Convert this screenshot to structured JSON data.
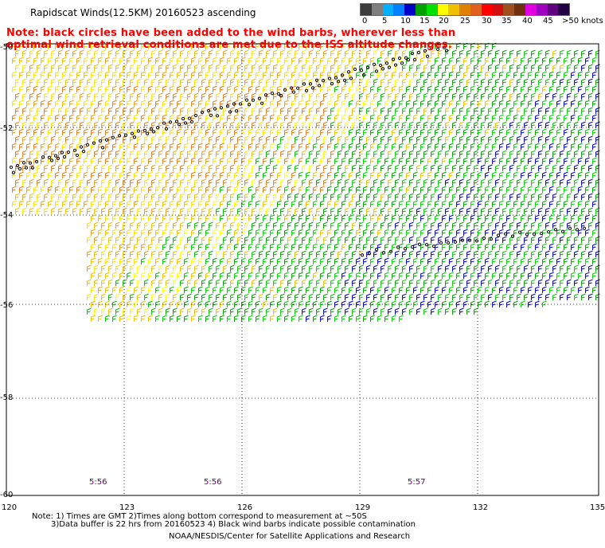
{
  "title": "Rapidscat Winds(12.5KM) 20160523 ascending",
  "note": {
    "line1": "Note: black circles have been added to the wind barbs, wherever less than",
    "line2": "optimal wind retrieval conditions are met due to the ISS altitude changes."
  },
  "legend": {
    "ticks": [
      "0",
      "5",
      "10",
      "15",
      "20",
      "25",
      "30",
      "35",
      "40",
      "45",
      ">50 knots"
    ],
    "colors": [
      "#3c3c3c",
      "#7f7f7f",
      "#00b0ff",
      "#0080ff",
      "#0000c8",
      "#00a000",
      "#00e000",
      "#ffff00",
      "#f0c000",
      "#e08000",
      "#e06020",
      "#ff0000",
      "#d01010",
      "#a05020",
      "#703010",
      "#e000e0",
      "#a000c0",
      "#600080",
      "#200040"
    ]
  },
  "map": {
    "lon_labels": [
      "120",
      "123",
      "126",
      "129",
      "132",
      "135"
    ],
    "lat_labels": [
      "-50",
      "-52",
      "-54",
      "-56",
      "-58",
      "-60"
    ],
    "time_labels": [
      "5:56",
      "5:56",
      "5:57"
    ]
  },
  "footer": {
    "line1": "Note: 1) Times are GMT 2)Times along bottom correspond to measurement at ~50S",
    "line2": "3)Data buffer is 22 hrs from 20160523 4) Black wind barbs indicate possible contamination",
    "credit": "NOAA/NESDIS/Center for Satellite Applications and Research"
  }
}
